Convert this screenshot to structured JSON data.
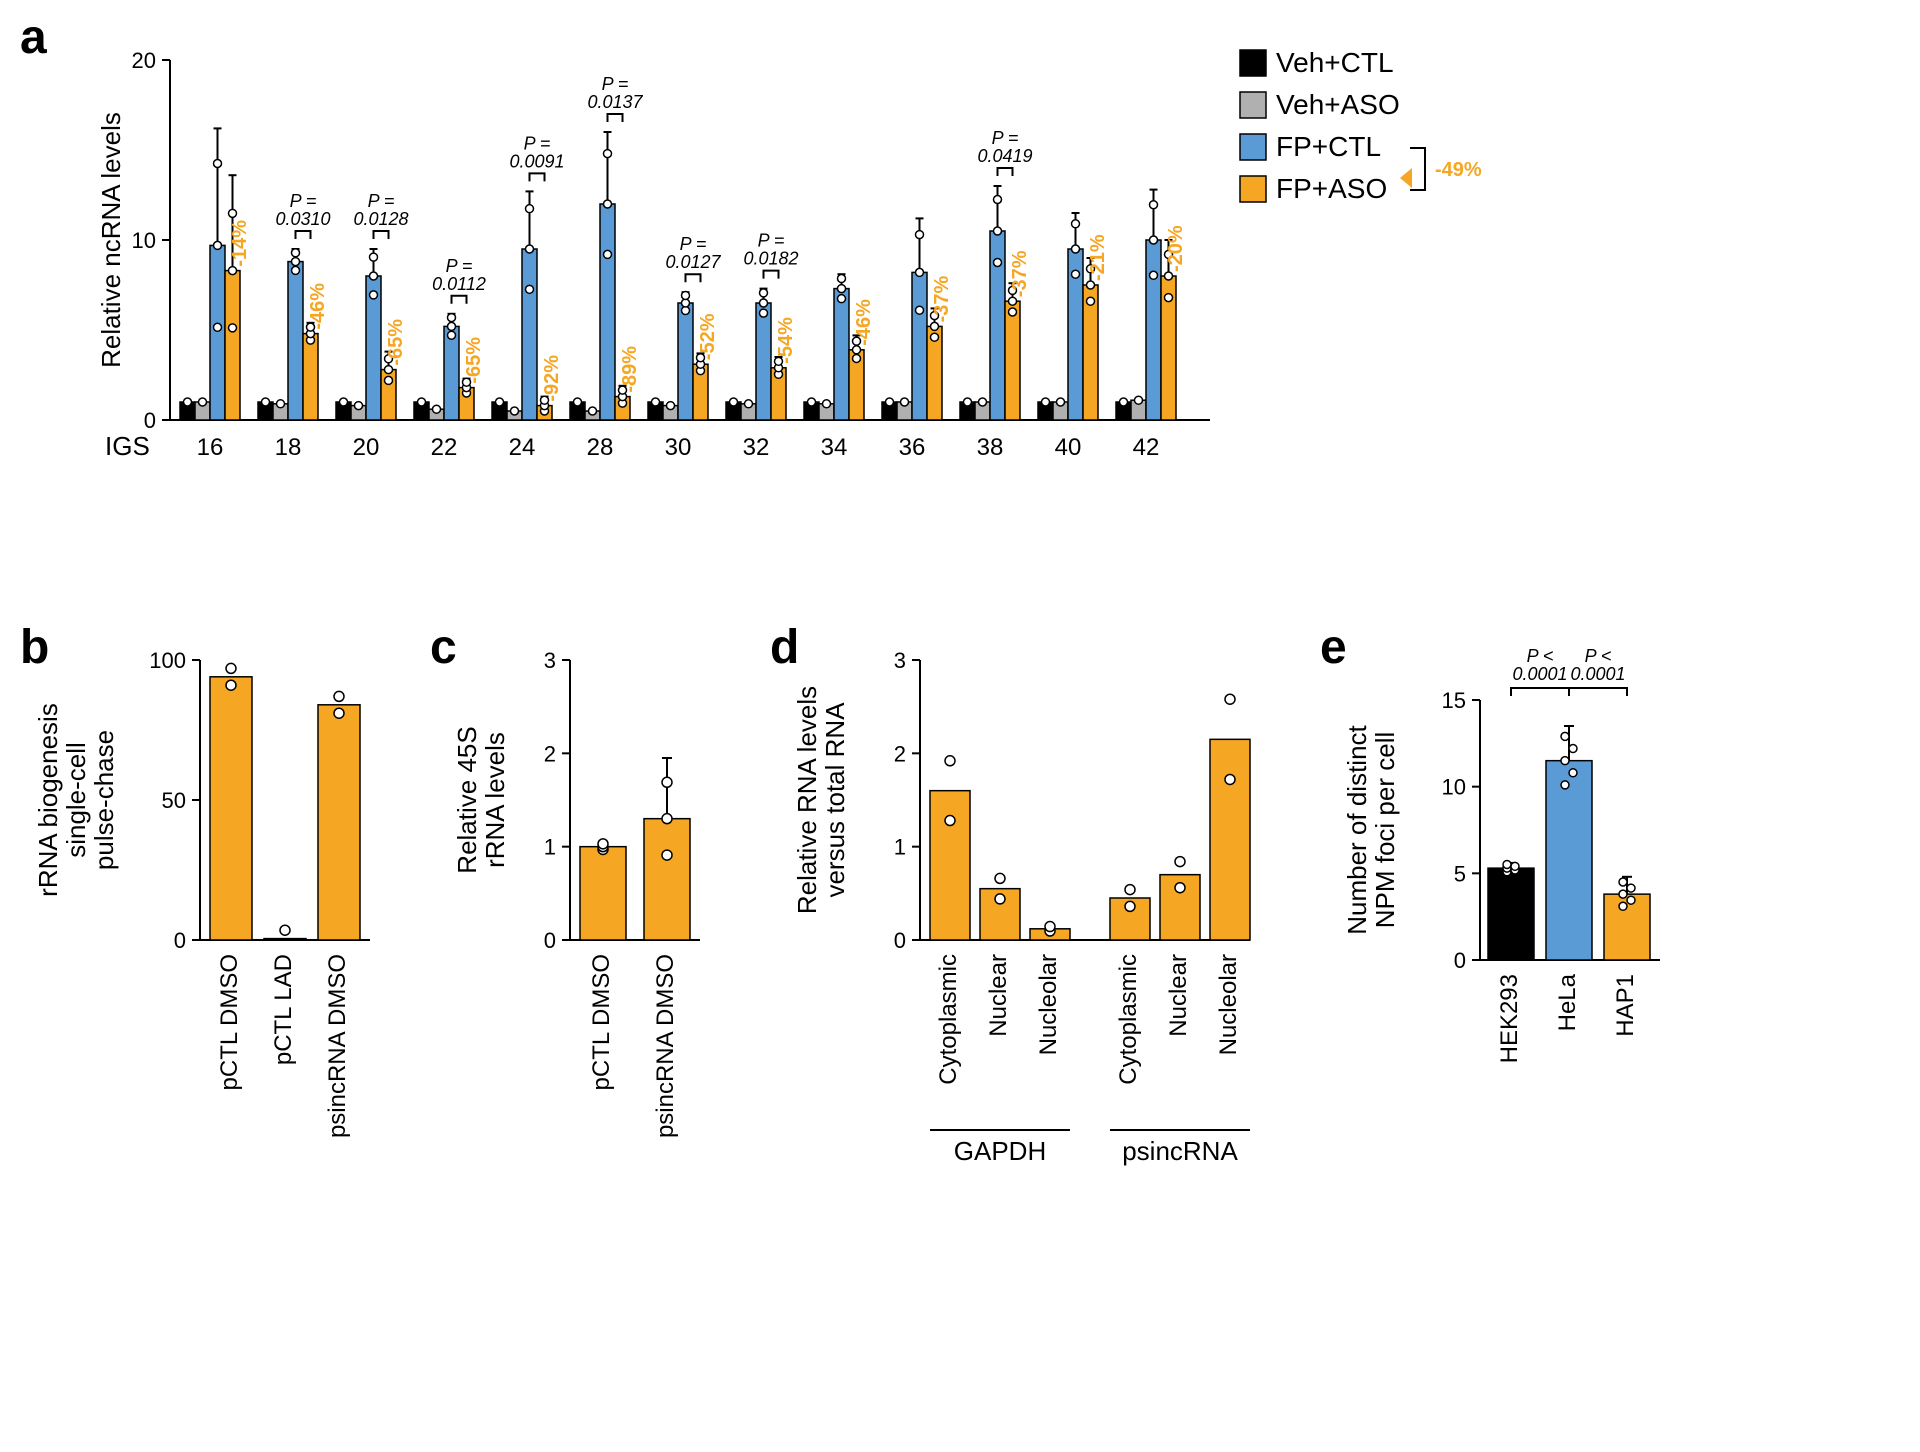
{
  "colors": {
    "black": "#000000",
    "grey": "#b0b0b0",
    "blue": "#5a9bd5",
    "orange": "#f5a623",
    "background": "#ffffff"
  },
  "panel_a": {
    "label": "a",
    "type": "bar",
    "ylabel": "Relative ncRNA levels",
    "ylim": [
      0,
      20
    ],
    "yticks": [
      0,
      10,
      20
    ],
    "xlabel_prefix": "IGS",
    "categories": [
      "16",
      "18",
      "20",
      "22",
      "24",
      "28",
      "30",
      "32",
      "34",
      "36",
      "38",
      "40",
      "42"
    ],
    "series": [
      {
        "name": "Veh+CTL",
        "color": "#000000"
      },
      {
        "name": "Veh+ASO",
        "color": "#b0b0b0"
      },
      {
        "name": "FP+CTL",
        "color": "#5a9bd5"
      },
      {
        "name": "FP+ASO",
        "color": "#f5a623"
      }
    ],
    "values": {
      "VehCTL": [
        1.0,
        1.0,
        1.0,
        1.0,
        1.0,
        1.0,
        1.0,
        1.0,
        1.0,
        1.0,
        1.0,
        1.0,
        1.0
      ],
      "VehASO": [
        1.0,
        0.9,
        0.8,
        0.6,
        0.5,
        0.5,
        0.8,
        0.9,
        0.9,
        1.0,
        1.0,
        1.0,
        1.1
      ],
      "FPCTL": [
        9.7,
        8.8,
        8.0,
        5.2,
        9.5,
        12.0,
        6.5,
        6.5,
        7.3,
        8.2,
        10.5,
        9.5,
        10.0
      ],
      "FPASO": [
        8.3,
        4.8,
        2.8,
        1.8,
        0.8,
        1.3,
        3.1,
        2.9,
        3.9,
        5.2,
        6.6,
        7.5,
        8.0
      ]
    },
    "errors": {
      "FPCTL": [
        6.5,
        0.7,
        1.5,
        0.7,
        3.2,
        4.0,
        0.6,
        0.8,
        0.8,
        3.0,
        2.5,
        2.0,
        2.8
      ],
      "FPASO": [
        5.3,
        0.6,
        1.0,
        0.5,
        0.5,
        0.6,
        0.6,
        0.6,
        0.8,
        1.0,
        1.0,
        1.5,
        2.0
      ]
    },
    "pvalues": [
      "",
      "0.0310",
      "0.0128",
      "0.0112",
      "0.0091",
      "0.0137",
      "0.0127",
      "0.0182",
      "",
      "",
      "0.0419",
      "",
      ""
    ],
    "percents": [
      "-14%",
      "-46%",
      "-65%",
      "-65%",
      "-92%",
      "-89%",
      "-52%",
      "-54%",
      "-46%",
      "-37%",
      "-37%",
      "-21%",
      "-20%"
    ],
    "overall_percent": "-49%"
  },
  "panel_b": {
    "label": "b",
    "type": "bar",
    "ylabel": "rRNA biogenesis\nsingle-cell\npulse-chase",
    "ylim": [
      0,
      100
    ],
    "yticks": [
      0,
      50,
      100
    ],
    "categories": [
      "pCTL DMSO",
      "pCTL LAD",
      "psincRNA DMSO"
    ],
    "values": [
      94,
      0.5,
      84
    ],
    "color": "#f5a623"
  },
  "panel_c": {
    "label": "c",
    "type": "bar",
    "ylabel": "Relative 45S\nrRNA levels",
    "ylim": [
      0,
      3
    ],
    "yticks": [
      0,
      1,
      2,
      3
    ],
    "categories": [
      "pCTL DMSO",
      "psincRNA DMSO"
    ],
    "values": [
      1.0,
      1.3
    ],
    "errors": [
      0.05,
      0.65
    ],
    "color": "#f5a623"
  },
  "panel_d": {
    "label": "d",
    "type": "bar",
    "ylabel": "Relative RNA levels\nversus total RNA",
    "ylim": [
      0,
      3
    ],
    "yticks": [
      0,
      1,
      2,
      3
    ],
    "groups": [
      "GAPDH",
      "psincRNA"
    ],
    "sub": [
      "Cytoplasmic",
      "Nuclear",
      "Nucleolar"
    ],
    "values": [
      1.6,
      0.55,
      0.12,
      0.45,
      0.7,
      2.15
    ],
    "color": "#f5a623"
  },
  "panel_e": {
    "label": "e",
    "type": "bar",
    "ylabel": "Number of distinct\nNPM foci per cell",
    "ylim": [
      0,
      15
    ],
    "yticks": [
      0,
      5,
      10,
      15
    ],
    "categories": [
      "HEK293",
      "HeLa",
      "HAP1"
    ],
    "values": [
      5.3,
      11.5,
      3.8
    ],
    "errors": [
      0.3,
      2.0,
      1.0
    ],
    "colors": [
      "#000000",
      "#5a9bd5",
      "#f5a623"
    ],
    "pvalues": [
      "0.0001",
      "0.0001"
    ]
  }
}
